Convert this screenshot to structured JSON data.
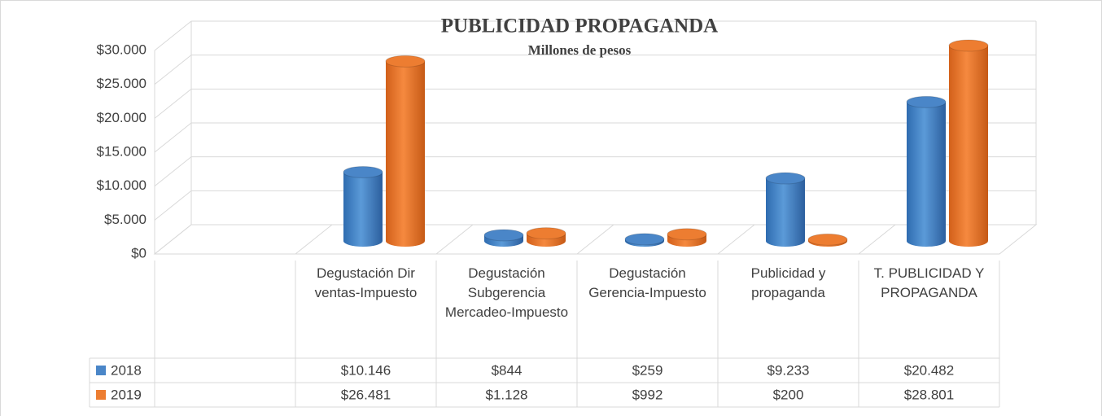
{
  "chart_data": {
    "type": "bar3d",
    "title": "PUBLICIDAD PROPAGANDA",
    "subtitle": "Millones de pesos",
    "categories": [
      null,
      "Degustación Dir ventas-Impuesto",
      "Degustación Subgerencia Mercadeo-Impuesto",
      "Degustación Gerencia-Impuesto",
      "Publicidad y propaganda",
      "T. PUBLICIDAD Y PROPAGANDA"
    ],
    "series": [
      {
        "name": "2018",
        "color": "#4a86c8",
        "values": [
          null,
          10146,
          844,
          259,
          9233,
          20482
        ],
        "value_labels": [
          null,
          "$10.146",
          "$844",
          "$259",
          "$9.233",
          "$20.482"
        ]
      },
      {
        "name": "2019",
        "color": "#ed7d31",
        "values": [
          null,
          26481,
          1128,
          992,
          200,
          28801
        ],
        "value_labels": [
          null,
          "$26.481",
          "$1.128",
          "$992",
          "$200",
          "$28.801"
        ]
      }
    ],
    "ylim": [
      0,
      30000
    ],
    "yticks": [
      {
        "value": 0,
        "label": "$0"
      },
      {
        "value": 5000,
        "label": "$5.000"
      },
      {
        "value": 10000,
        "label": "$10.000"
      },
      {
        "value": 15000,
        "label": "$15.000"
      },
      {
        "value": 20000,
        "label": "$20.000"
      },
      {
        "value": 25000,
        "label": "$25.000"
      },
      {
        "value": 30000,
        "label": "$30.000"
      }
    ],
    "grid": true
  }
}
